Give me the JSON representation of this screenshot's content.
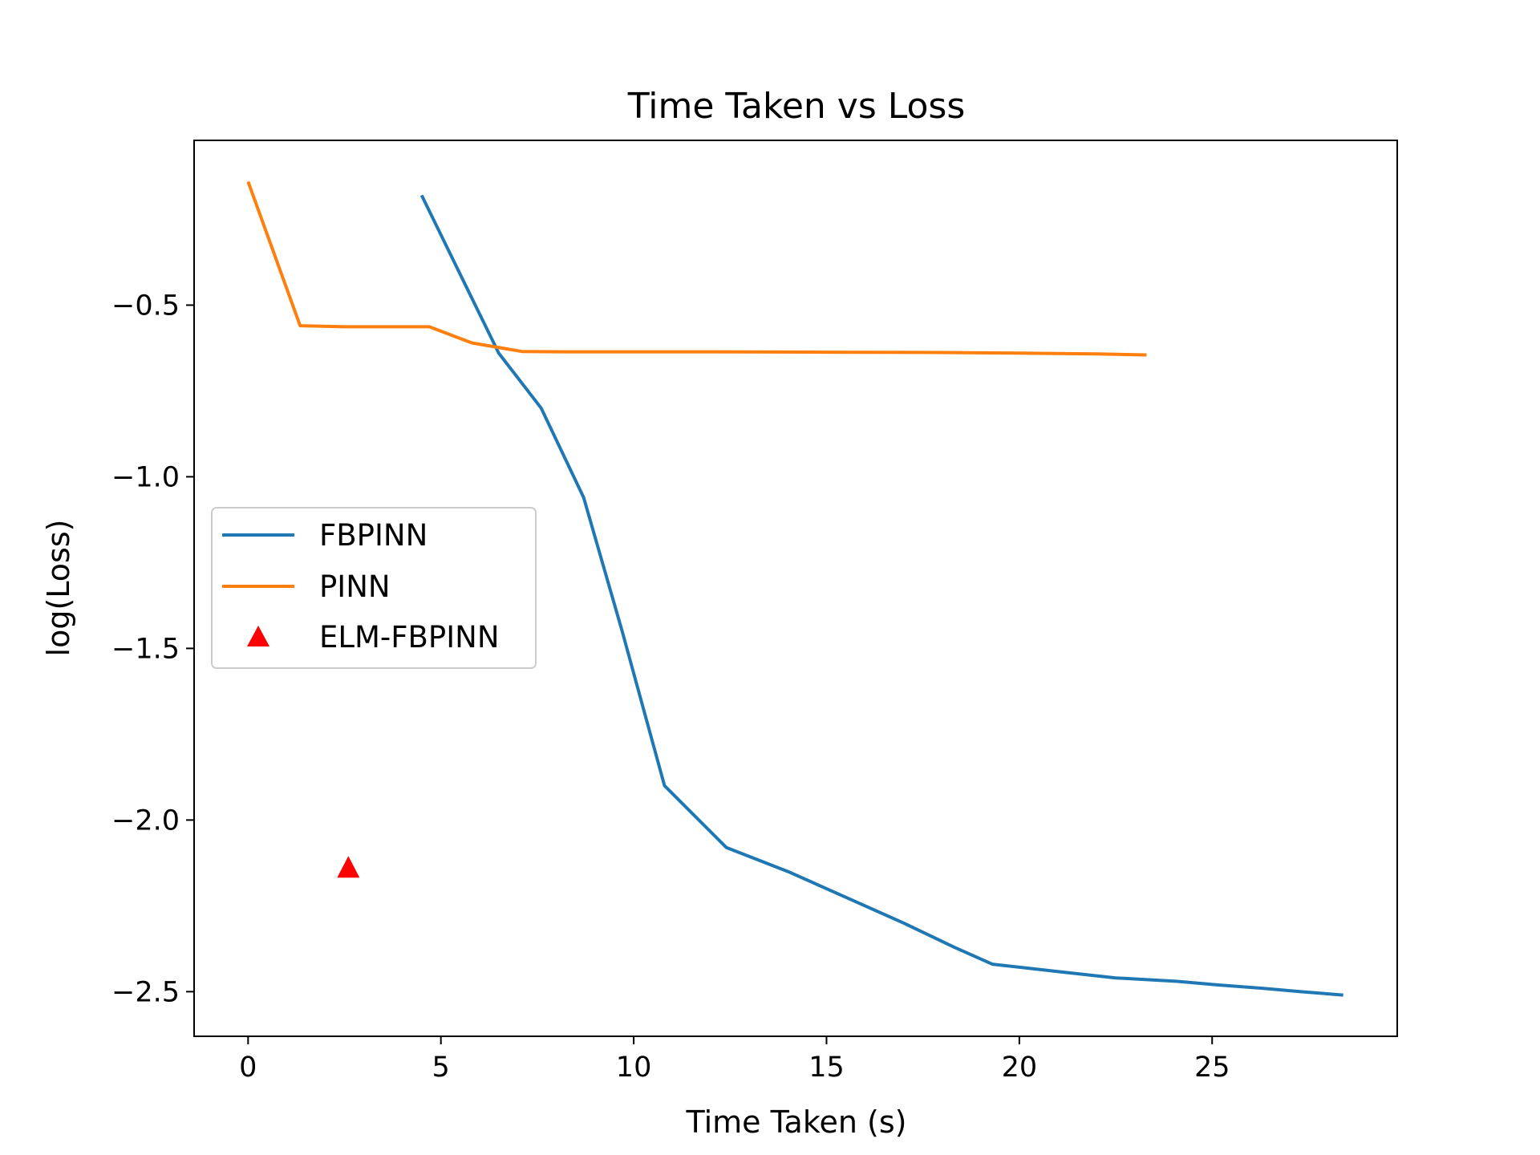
{
  "chart_data": {
    "type": "line",
    "title": "Time Taken vs Loss",
    "xlabel": "Time Taken (s)",
    "ylabel": "log(Loss)",
    "xlim": [
      -1.4,
      29.8
    ],
    "ylim": [
      -2.63,
      -0.02
    ],
    "xticks": [
      0,
      5,
      10,
      15,
      20,
      25
    ],
    "yticks": [
      -0.5,
      -1.0,
      -1.5,
      -2.0,
      -2.5
    ],
    "xtick_labels": [
      "0",
      "5",
      "10",
      "15",
      "20",
      "25"
    ],
    "ytick_labels": [
      "−0.5",
      "−1.0",
      "−1.5",
      "−2.0",
      "−2.5"
    ],
    "grid": false,
    "legend_position": "center-left",
    "series": [
      {
        "name": "FBPINN",
        "kind": "line",
        "color": "#1f77b4",
        "x": [
          4.5,
          5.5,
          6.5,
          7.6,
          8.7,
          9.7,
          10.8,
          12.4,
          14.0,
          15.6,
          17.0,
          18.3,
          19.3,
          20.9,
          22.5,
          24.1,
          25.1,
          26.3,
          27.3,
          28.4
        ],
        "y": [
          -0.18,
          -0.41,
          -0.64,
          -0.8,
          -1.06,
          -1.45,
          -1.9,
          -2.08,
          -2.15,
          -2.23,
          -2.3,
          -2.37,
          -2.42,
          -2.44,
          -2.46,
          -2.47,
          -2.48,
          -2.49,
          -2.5,
          -2.51
        ]
      },
      {
        "name": "PINN",
        "kind": "line",
        "color": "#ff7f0e",
        "x": [
          0.0,
          1.35,
          2.5,
          3.6,
          4.7,
          5.8,
          7.1,
          8.2,
          10.0,
          12.0,
          15.0,
          18.0,
          20.0,
          22.0,
          23.3
        ],
        "y": [
          -0.14,
          -0.56,
          -0.563,
          -0.563,
          -0.563,
          -0.61,
          -0.635,
          -0.636,
          -0.636,
          -0.636,
          -0.637,
          -0.638,
          -0.64,
          -0.642,
          -0.645
        ]
      },
      {
        "name": "ELM-FBPINN",
        "kind": "marker",
        "marker": "triangle",
        "color": "#ff0000",
        "x": [
          2.6
        ],
        "y": [
          -2.14
        ]
      }
    ]
  }
}
